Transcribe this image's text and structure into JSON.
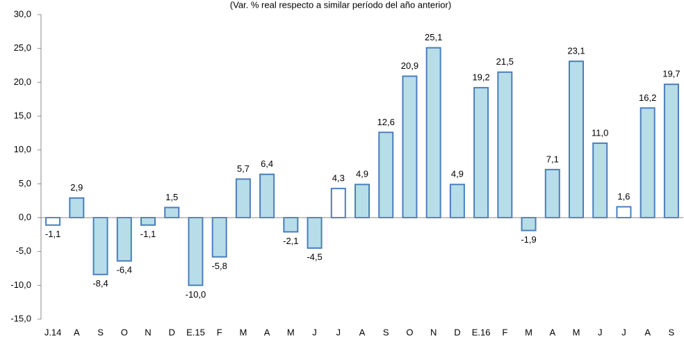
{
  "chart_data": {
    "type": "bar",
    "subtitle": "(Var. % real respecto a similar período del año anterior)",
    "categories": [
      "J.14",
      "A",
      "S",
      "O",
      "N",
      "D",
      "E.15",
      "F",
      "M",
      "A",
      "M",
      "J",
      "J",
      "A",
      "S",
      "O",
      "N",
      "D",
      "E.16",
      "F",
      "M",
      "A",
      "M",
      "J",
      "J",
      "A",
      "S"
    ],
    "values": [
      -1.1,
      2.9,
      -8.4,
      -6.4,
      -1.1,
      1.5,
      -10.0,
      -5.8,
      5.7,
      6.4,
      -2.1,
      -4.5,
      4.3,
      4.9,
      12.6,
      20.9,
      25.1,
      4.9,
      19.2,
      21.5,
      -1.9,
      7.1,
      23.1,
      11.0,
      1.6,
      16.2,
      19.7
    ],
    "value_labels": [
      "-1,1",
      "2,9",
      "-8,4",
      "-6,4",
      "-1,1",
      "1,5",
      "-10,0",
      "-5,8",
      "5,7",
      "6,4",
      "-2,1",
      "-4,5",
      "4,3",
      "4,9",
      "12,6",
      "20,9",
      "25,1",
      "4,9",
      "19,2",
      "21,5",
      "-1,9",
      "7,1",
      "23,1",
      "11,0",
      "1,6",
      "16,2",
      "19,7"
    ],
    "colors": [
      "#ffffff",
      "#b7dde8",
      "#b7dde8",
      "#b7dde8",
      "#b7dde8",
      "#b7dde8",
      "#b7dde8",
      "#b7dde8",
      "#b7dde8",
      "#b7dde8",
      "#b7dde8",
      "#b7dde8",
      "#ffffff",
      "#b7dde8",
      "#b7dde8",
      "#b7dde8",
      "#b7dde8",
      "#b7dde8",
      "#b7dde8",
      "#b7dde8",
      "#b7dde8",
      "#b7dde8",
      "#b7dde8",
      "#b7dde8",
      "#ffffff",
      "#b7dde8",
      "#b7dde8"
    ],
    "edge_color": "#4a7ebb",
    "ylim": [
      -15,
      30
    ],
    "yticks": [
      {
        "value": -15,
        "label": "-15,0"
      },
      {
        "value": -10,
        "label": "-10,0"
      },
      {
        "value": -5,
        "label": "-5,0"
      },
      {
        "value": 0,
        "label": "0,0"
      },
      {
        "value": 5,
        "label": "5,0"
      },
      {
        "value": 10,
        "label": "10,0"
      },
      {
        "value": 15,
        "label": "15,0"
      },
      {
        "value": 20,
        "label": "20,0"
      },
      {
        "value": 25,
        "label": "25,0"
      },
      {
        "value": 30,
        "label": "30,0"
      }
    ]
  }
}
